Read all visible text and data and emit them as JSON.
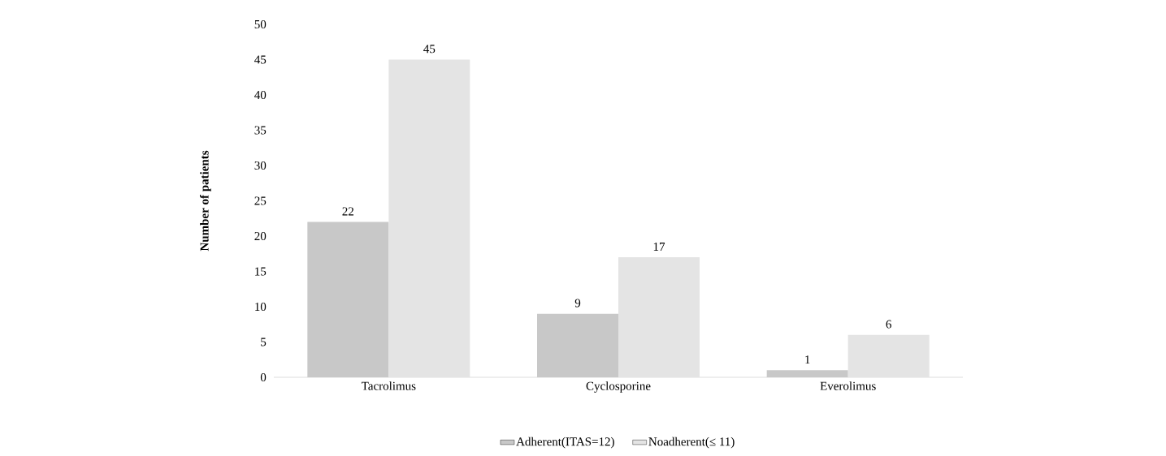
{
  "chart_data": {
    "type": "bar",
    "ylabel": "Number of patients",
    "categories": [
      "Tacrolimus",
      "Cyclosporine",
      "Everolimus"
    ],
    "series": [
      {
        "name": "Adherent(ITAS=12)",
        "color": "#c8c8c8",
        "values": [
          22,
          9,
          1
        ]
      },
      {
        "name": "Noadherent(≤ 11)",
        "color": "#e4e4e4",
        "values": [
          45,
          17,
          6
        ]
      }
    ],
    "ylim": [
      0,
      50
    ],
    "yticks": [
      0,
      5,
      10,
      15,
      20,
      25,
      30,
      35,
      40,
      45,
      50
    ],
    "data_labels": true,
    "grid": false,
    "legend": "bottom"
  }
}
